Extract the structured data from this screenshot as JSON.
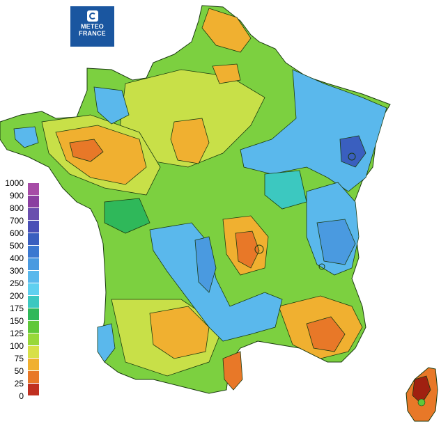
{
  "logo": {
    "line1": "METEO",
    "line2": "FRANCE"
  },
  "legend": {
    "ticks": [
      "1000",
      "900",
      "800",
      "700",
      "600",
      "500",
      "400",
      "300",
      "250",
      "200",
      "175",
      "150",
      "125",
      "100",
      "75",
      "50",
      "25",
      "0"
    ],
    "colors": [
      "#a64ca6",
      "#8a3fa0",
      "#6a4fae",
      "#4a4fb6",
      "#3a5fbf",
      "#3b78d0",
      "#4a9ae0",
      "#5ab8ec",
      "#5fd0f0",
      "#3cc8c0",
      "#2fb85a",
      "#5fc83a",
      "#98d83a",
      "#d8e048",
      "#f0b030",
      "#e87828",
      "#c03020"
    ]
  },
  "map_colors": {
    "green": "#7cd040",
    "yellow_green": "#c8e048",
    "orange": "#f0b030",
    "red_orange": "#e87828",
    "dark_red": "#a02010",
    "light_blue": "#5ab8ec",
    "blue": "#4a9ae0",
    "dark_blue": "#3a5fbf",
    "teal": "#3cc8c0",
    "deep_green": "#2fb85a"
  }
}
